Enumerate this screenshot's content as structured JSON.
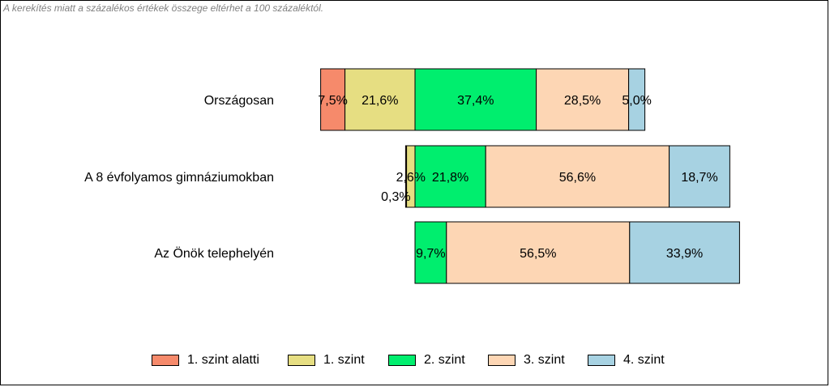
{
  "note": "A kerekítés miatt a  százalékos értékek összege eltérhet a 100 százaléktól.",
  "colors": {
    "below_level_1": "#F68A6B",
    "level_1": "#E6DE82",
    "level_2": "#00EE6E",
    "level_3": "#FDD6B4",
    "level_4": "#A7D2E2"
  },
  "chart_data": {
    "type": "bar",
    "orientation": "horizontal",
    "stacked": true,
    "categories": [
      "Országosan",
      "A 8 évfolyamos gimnáziumokban",
      "Az Önök telephelyén"
    ],
    "series": [
      {
        "name": "1. szint alatti",
        "values": [
          7.5,
          0.3,
          0.0
        ],
        "labels": [
          "7,5%",
          "0,3%",
          ""
        ]
      },
      {
        "name": "1. szint",
        "values": [
          21.6,
          2.6,
          0.0
        ],
        "labels": [
          "21,6%",
          "2,6%",
          ""
        ]
      },
      {
        "name": "2. szint",
        "values": [
          37.4,
          21.8,
          9.7
        ],
        "labels": [
          "37,4%",
          "21,8%",
          "9,7%"
        ]
      },
      {
        "name": "3. szint",
        "values": [
          28.5,
          56.6,
          56.5
        ],
        "labels": [
          "28,5%",
          "56,6%",
          "56,5%"
        ]
      },
      {
        "name": "4. szint",
        "values": [
          5.0,
          18.7,
          33.9
        ],
        "labels": [
          "5,0%",
          "18,7%",
          "33,9%"
        ]
      }
    ],
    "legend_position": "bottom",
    "grid": false
  }
}
